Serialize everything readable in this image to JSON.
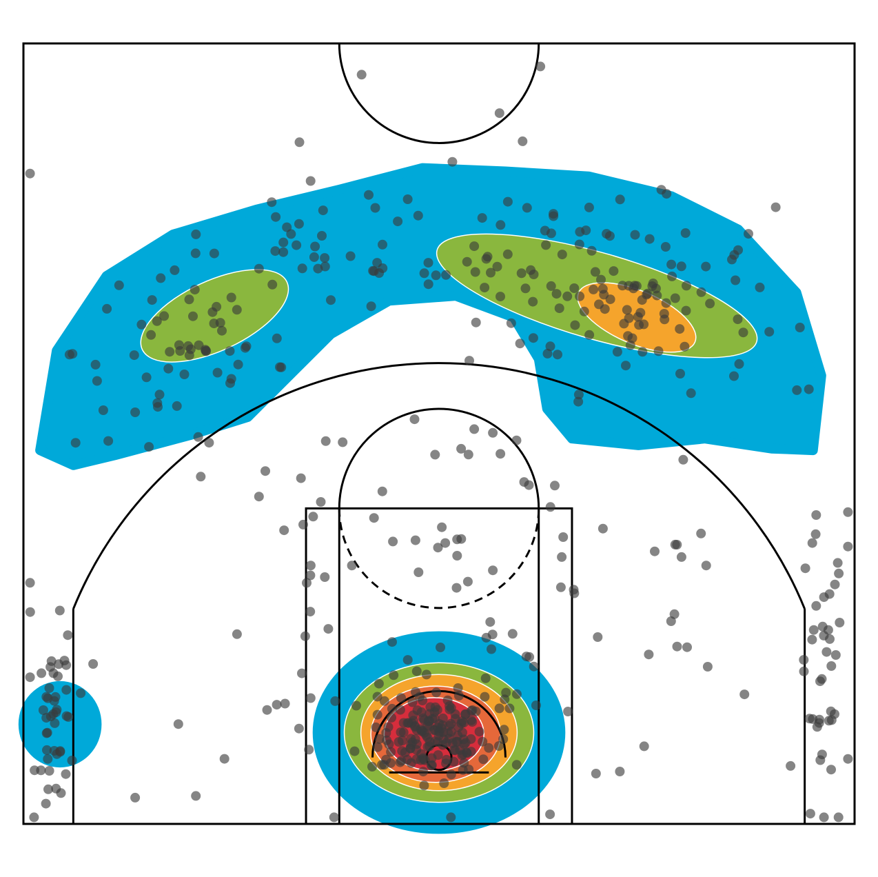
{
  "chart_data": {
    "type": "scatter",
    "subtype": "shot-chart-density",
    "title": "",
    "xlabel": "",
    "ylabel": "",
    "xlim": [
      -25,
      25
    ],
    "ylim": [
      -4,
      43
    ],
    "grid": false,
    "legend": "none",
    "background": "#ffffff",
    "court_line_color": "#000000",
    "point_color": "#3a3a3a",
    "point_opacity": 0.62,
    "density_levels": [
      {
        "level": 1,
        "color": "#00a9d9"
      },
      {
        "level": 2,
        "color": "#8ab73e"
      },
      {
        "level": 3,
        "color": "#f5a42c"
      },
      {
        "level": 4,
        "color": "#e5683a"
      },
      {
        "level": 5,
        "color": "#d62d3c"
      }
    ],
    "clusters": [
      {
        "name": "paint",
        "cx": -0.4,
        "cy": 1.2,
        "sx": 1.6,
        "sy": 1.1,
        "n": 120
      },
      {
        "name": "rim-area",
        "cx": 0,
        "cy": 2.5,
        "sx": 3.6,
        "sy": 2.4,
        "n": 50
      },
      {
        "name": "right-wing-3",
        "cx": 12.0,
        "cy": 26.5,
        "sx": 3.5,
        "sy": 2.2,
        "n": 60
      },
      {
        "name": "right-arc-3",
        "cx": 8.0,
        "cy": 30.0,
        "sx": 6.0,
        "sy": 1.8,
        "n": 70
      },
      {
        "name": "left-wing-3",
        "cx": -15.5,
        "cy": 24.5,
        "sx": 3.2,
        "sy": 3.0,
        "n": 60
      },
      {
        "name": "left-arc-3",
        "cx": -7.0,
        "cy": 30.5,
        "sx": 3.2,
        "sy": 2.0,
        "n": 30
      },
      {
        "name": "right-corner-3",
        "cx": 23.0,
        "cy": 4.0,
        "sx": 0.7,
        "sy": 5.0,
        "n": 40
      },
      {
        "name": "left-corner-3",
        "cx": -23.0,
        "cy": 2.0,
        "sx": 0.6,
        "sy": 2.8,
        "n": 45
      },
      {
        "name": "mid-range",
        "cx": 0,
        "cy": 10.0,
        "sx": 11.0,
        "sy": 6.0,
        "n": 110
      },
      {
        "name": "deep",
        "cx": 0,
        "cy": 35.0,
        "sx": 12.0,
        "sy": 4.0,
        "n": 8
      }
    ],
    "density_contours": [
      {
        "level": 1,
        "cx": 0,
        "cy": 1.5,
        "rx": 7.6,
        "ry": 6.1
      },
      {
        "level": 2,
        "cx": 0,
        "cy": 1.5,
        "rx": 5.7,
        "ry": 4.2
      },
      {
        "level": 3,
        "cx": 0,
        "cy": 1.5,
        "rx": 4.7,
        "ry": 3.5
      },
      {
        "level": 4,
        "cx": -0.2,
        "cy": 1.4,
        "rx": 3.9,
        "ry": 2.9
      },
      {
        "level": 5,
        "cx": -0.3,
        "cy": 1.4,
        "rx": 3.0,
        "ry": 2.2
      },
      {
        "level": 1,
        "cx": -22.8,
        "cy": 2.0,
        "rx": 2.5,
        "ry": 2.6
      },
      {
        "level": 2,
        "cx": -13.5,
        "cy": 26.6,
        "rx": 4.8,
        "ry": 2.1,
        "rotate": -25
      },
      {
        "level": 2,
        "cx": 9.5,
        "cy": 27.8,
        "rx": 10.0,
        "ry": 2.6,
        "rotate": 16
      },
      {
        "level": 3,
        "cx": 11.9,
        "cy": 26.5,
        "rx": 3.8,
        "ry": 1.6,
        "rotate": 23
      }
    ],
    "court": {
      "basket": [
        0,
        0
      ],
      "hoop_radius": 0.75,
      "three_point_radius": 23.75,
      "corner_three_x": 22,
      "paint_outer_half_width": 8,
      "paint_inner_half_width": 6,
      "free_throw_line_y": 15,
      "free_throw_circle_radius": 6,
      "restricted_area_radius": 4,
      "backboard_y": -0.9,
      "backboard_half_width": 3,
      "baseline_y": -4,
      "half_court_y": 43,
      "center_circle_radius": 6
    }
  }
}
